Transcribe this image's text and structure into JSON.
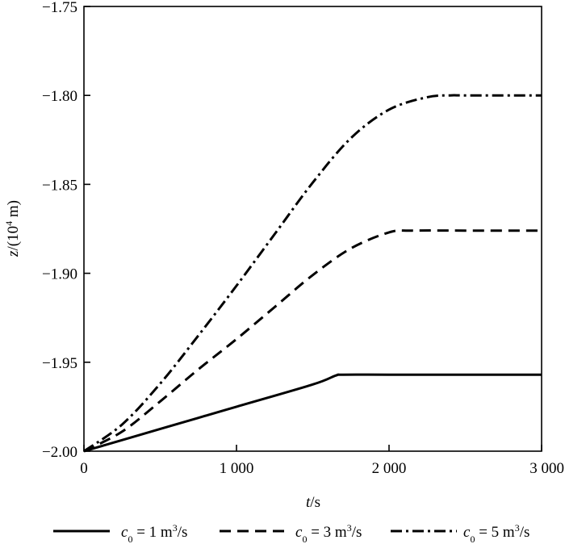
{
  "chart_data": {
    "type": "line",
    "title": "",
    "xlabel": {
      "var": "t",
      "rest": "/s"
    },
    "ylabel": {
      "var": "z",
      "rest": "/(10",
      "sup": "4",
      "tail": " m)"
    },
    "xlim": [
      0,
      3000
    ],
    "ylim": [
      -2.0,
      -1.75
    ],
    "x_ticks": [
      0,
      1000,
      2000,
      3000
    ],
    "x_tick_labels": [
      "0",
      "1 000",
      "2 000",
      "3 000"
    ],
    "y_ticks": [
      -2.0,
      -1.95,
      -1.9,
      -1.85,
      -1.8,
      -1.75
    ],
    "y_tick_labels": [
      "−2.00",
      "−1.95",
      "−1.90",
      "−1.85",
      "−1.80",
      "−1.75"
    ],
    "grid": false,
    "legend_position": "bottom",
    "series": [
      {
        "name": "c0 = 1 m³/s",
        "legend": {
          "var": "c",
          "sub": "0",
          "rest": " = 1 m",
          "sup": "3",
          "tail": "/s"
        },
        "style": "solid",
        "x": [
          0,
          500,
          1000,
          1500,
          1650,
          1700,
          2000,
          2500,
          3000
        ],
        "y": [
          -2.0,
          -1.9875,
          -1.975,
          -1.9625,
          -1.9575,
          -1.957,
          -1.957,
          -1.957,
          -1.957
        ]
      },
      {
        "name": "c0 = 3 m³/s",
        "legend": {
          "var": "c",
          "sub": "0",
          "rest": " = 3 m",
          "sup": "3",
          "tail": "/s"
        },
        "style": "dashed",
        "x": [
          0,
          250,
          500,
          750,
          1000,
          1250,
          1500,
          1750,
          2000,
          2150,
          2500,
          3000
        ],
        "y": [
          -2.0,
          -1.989,
          -1.972,
          -1.954,
          -1.937,
          -1.919,
          -1.901,
          -1.886,
          -1.877,
          -1.876,
          -1.876,
          -1.876
        ]
      },
      {
        "name": "c0 = 5 m³/s",
        "legend": {
          "var": "c",
          "sub": "0",
          "rest": " = 5 m",
          "sup": "3",
          "tail": "/s"
        },
        "style": "dashdot",
        "x": [
          0,
          250,
          500,
          750,
          1000,
          1250,
          1500,
          1750,
          2000,
          2250,
          2400,
          2500,
          3000
        ],
        "y": [
          -2.0,
          -1.985,
          -1.962,
          -1.935,
          -1.907,
          -1.878,
          -1.849,
          -1.824,
          -1.808,
          -1.801,
          -1.8,
          -1.8,
          -1.8
        ]
      }
    ]
  }
}
